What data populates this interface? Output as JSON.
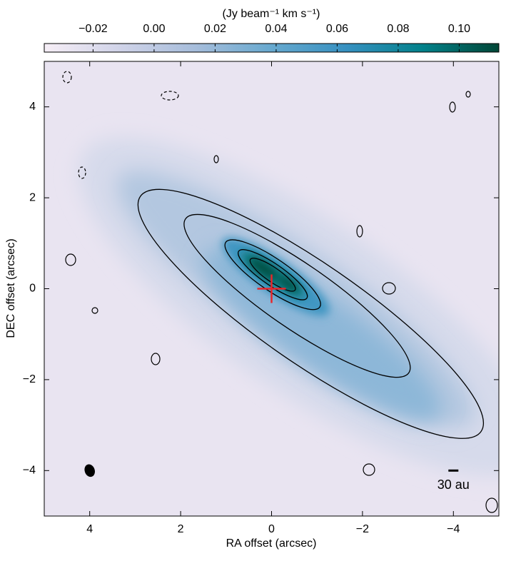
{
  "chart_data": {
    "type": "image",
    "colorbar_label": "(Jy beam⁻¹ km s⁻¹)",
    "clim": [
      -0.036,
      0.113
    ],
    "cticks": [
      {
        "value": -0.02,
        "label": "−0.02"
      },
      {
        "value": 0,
        "label": "0.00"
      },
      0.02,
      0.04,
      0.06,
      0.08,
      {
        "value": 0.1,
        "label": "0.10"
      }
    ],
    "colormap": [
      "#f6eef6",
      "#d0d3e8",
      "#a6bddb",
      "#67a9cf",
      "#3690c0",
      "#02818a",
      "#014636"
    ],
    "x_label": "RA offset (arcsec)",
    "y_label": "DEC offset (arcsec)",
    "xlim": [
      5,
      -5
    ],
    "ylim": [
      -5,
      5
    ],
    "xticks": [
      4,
      2,
      0,
      {
        "value": -2,
        "label": "−2"
      },
      {
        "value": -4,
        "label": "−4"
      }
    ],
    "yticks": [
      {
        "value": -4,
        "label": "−4"
      },
      {
        "value": -2,
        "label": "−2"
      },
      0,
      2,
      4
    ],
    "source_position": [
      0,
      0
    ],
    "source_color": "#e8262a",
    "beam_position": [
      4,
      -4
    ],
    "scale_bar": {
      "x": -4,
      "y": -4,
      "label": "30 au"
    }
  }
}
